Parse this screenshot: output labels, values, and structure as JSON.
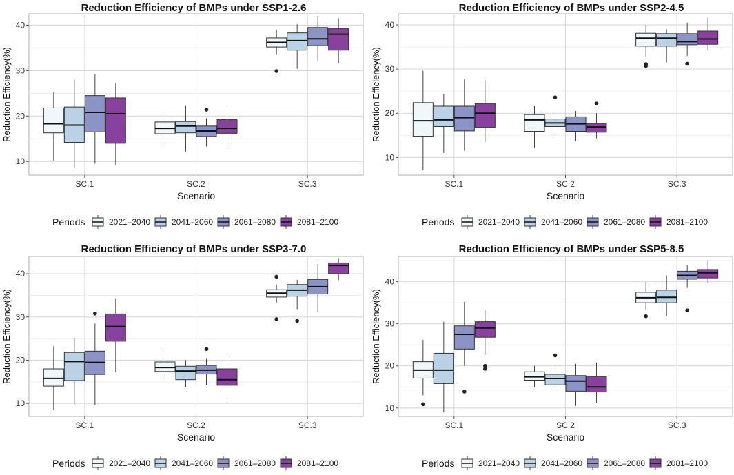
{
  "legend": {
    "title": "Periods",
    "items": [
      {
        "label": "2021–2040",
        "color": "#eef7f9"
      },
      {
        "label": "2041–2060",
        "color": "#b9d2e6"
      },
      {
        "label": "2061–2080",
        "color": "#8c93c6"
      },
      {
        "label": "2081–2100",
        "color": "#88419d"
      }
    ]
  },
  "chart_data": [
    {
      "type": "boxplot",
      "title": "Reduction Efficiency of BMPs under SSP1-2.6",
      "xlabel": "Scenario",
      "ylabel": "Reduction Efficiency(%)",
      "categories": [
        "SC.1",
        "SC.2",
        "SC.3"
      ],
      "ylim": [
        7,
        42.5
      ],
      "yticks": [
        10,
        20,
        30,
        40
      ],
      "series": [
        {
          "name": "2021–2040",
          "boxes": [
            {
              "min": 10.2,
              "q1": 16.3,
              "median": 18.3,
              "q3": 21.8,
              "max": 25.2,
              "outliers": []
            },
            {
              "min": 13.8,
              "q1": 16.1,
              "median": 17.3,
              "q3": 18.7,
              "max": 21.0,
              "outliers": []
            },
            {
              "min": 33.5,
              "q1": 35.2,
              "median": 36.2,
              "q3": 37.2,
              "max": 39.0,
              "outliers": [
                29.9
              ]
            }
          ]
        },
        {
          "name": "2041–2060",
          "boxes": [
            {
              "min": 8.7,
              "q1": 14.2,
              "median": 18.0,
              "q3": 22.0,
              "max": 28.0,
              "outliers": []
            },
            {
              "min": 12.2,
              "q1": 16.3,
              "median": 17.8,
              "q3": 18.8,
              "max": 22.2,
              "outliers": []
            },
            {
              "min": 30.4,
              "q1": 34.5,
              "median": 36.6,
              "q3": 38.3,
              "max": 40.2,
              "outliers": []
            }
          ]
        },
        {
          "name": "2061–2080",
          "boxes": [
            {
              "min": 9.5,
              "q1": 16.5,
              "median": 20.8,
              "q3": 24.5,
              "max": 29.2,
              "outliers": []
            },
            {
              "min": 13.3,
              "q1": 15.5,
              "median": 16.7,
              "q3": 17.8,
              "max": 19.5,
              "outliers": [
                21.4
              ]
            },
            {
              "min": 32.2,
              "q1": 35.5,
              "median": 37.0,
              "q3": 39.5,
              "max": 42.0,
              "outliers": []
            }
          ]
        },
        {
          "name": "2081–2100",
          "boxes": [
            {
              "min": 9.2,
              "q1": 14.0,
              "median": 20.5,
              "q3": 24.0,
              "max": 27.3,
              "outliers": []
            },
            {
              "min": 13.5,
              "q1": 16.2,
              "median": 17.3,
              "q3": 19.2,
              "max": 21.8,
              "outliers": []
            },
            {
              "min": 31.6,
              "q1": 34.5,
              "median": 38.0,
              "q3": 39.3,
              "max": 41.5,
              "outliers": []
            }
          ]
        }
      ]
    },
    {
      "type": "boxplot",
      "title": "Reduction Efficiency of BMPs under SSP2-4.5",
      "xlabel": "Scenario",
      "ylabel": "Reduction Efficiency(%)",
      "categories": [
        "SC.1",
        "SC.2",
        "SC.3"
      ],
      "ylim": [
        6,
        42.5
      ],
      "yticks": [
        10,
        20,
        30,
        40
      ],
      "series": [
        {
          "name": "2021–2040",
          "boxes": [
            {
              "min": 7.1,
              "q1": 14.8,
              "median": 18.3,
              "q3": 22.4,
              "max": 29.6,
              "outliers": []
            },
            {
              "min": 12.2,
              "q1": 15.9,
              "median": 18.5,
              "q3": 19.7,
              "max": 21.6,
              "outliers": []
            },
            {
              "min": 32.8,
              "q1": 35.2,
              "median": 37.0,
              "q3": 38.1,
              "max": 40.0,
              "outliers": [
                30.7,
                31.1
              ]
            }
          ]
        },
        {
          "name": "2041–2060",
          "boxes": [
            {
              "min": 11.0,
              "q1": 17.0,
              "median": 18.5,
              "q3": 21.6,
              "max": 24.4,
              "outliers": []
            },
            {
              "min": 15.0,
              "q1": 17.0,
              "median": 17.8,
              "q3": 18.7,
              "max": 19.7,
              "outliers": [
                23.6
              ]
            },
            {
              "min": 31.5,
              "q1": 35.2,
              "median": 37.0,
              "q3": 38.0,
              "max": 39.0,
              "outliers": []
            }
          ]
        },
        {
          "name": "2061–2080",
          "boxes": [
            {
              "min": 11.5,
              "q1": 16.0,
              "median": 19.0,
              "q3": 21.6,
              "max": 27.7,
              "outliers": []
            },
            {
              "min": 13.7,
              "q1": 15.9,
              "median": 17.6,
              "q3": 19.2,
              "max": 20.5,
              "outliers": []
            },
            {
              "min": 33.0,
              "q1": 35.5,
              "median": 36.2,
              "q3": 38.0,
              "max": 40.5,
              "outliers": [
                31.2
              ]
            }
          ]
        },
        {
          "name": "2081–2100",
          "boxes": [
            {
              "min": 13.5,
              "q1": 16.8,
              "median": 20.0,
              "q3": 22.2,
              "max": 27.5,
              "outliers": []
            },
            {
              "min": 14.3,
              "q1": 15.7,
              "median": 16.9,
              "q3": 17.7,
              "max": 20.0,
              "outliers": [
                22.2
              ]
            },
            {
              "min": 34.3,
              "q1": 35.6,
              "median": 36.8,
              "q3": 38.6,
              "max": 41.6,
              "outliers": []
            }
          ]
        }
      ]
    },
    {
      "type": "boxplot",
      "title": "Reduction Efficiency of BMPs under SSP3-7.0",
      "xlabel": "Scenario",
      "ylabel": "Reduction Efficiency(%)",
      "categories": [
        "SC.1",
        "SC.2",
        "SC.3"
      ],
      "ylim": [
        7,
        44
      ],
      "yticks": [
        10,
        20,
        30,
        40
      ],
      "series": [
        {
          "name": "2021–2040",
          "boxes": [
            {
              "min": 8.5,
              "q1": 14.0,
              "median": 15.8,
              "q3": 18.0,
              "max": 23.2,
              "outliers": []
            },
            {
              "min": 16.4,
              "q1": 17.4,
              "median": 18.3,
              "q3": 19.6,
              "max": 22.0,
              "outliers": []
            },
            {
              "min": 33.3,
              "q1": 34.6,
              "median": 35.5,
              "q3": 36.3,
              "max": 37.5,
              "outliers": [
                39.3,
                29.5
              ]
            }
          ]
        },
        {
          "name": "2041–2060",
          "boxes": [
            {
              "min": 9.8,
              "q1": 15.3,
              "median": 19.7,
              "q3": 21.8,
              "max": 25.0,
              "outliers": []
            },
            {
              "min": 13.8,
              "q1": 15.5,
              "median": 17.5,
              "q3": 18.6,
              "max": 20.0,
              "outliers": []
            },
            {
              "min": 31.8,
              "q1": 34.8,
              "median": 36.2,
              "q3": 37.5,
              "max": 38.6,
              "outliers": [
                29.1
              ]
            }
          ]
        },
        {
          "name": "2061–2080",
          "boxes": [
            {
              "min": 9.7,
              "q1": 16.7,
              "median": 19.5,
              "q3": 22.1,
              "max": 28.5,
              "outliers": [
                30.8
              ]
            },
            {
              "min": 14.2,
              "q1": 16.8,
              "median": 17.7,
              "q3": 18.8,
              "max": 20.3,
              "outliers": [
                22.6
              ]
            },
            {
              "min": 31.1,
              "q1": 35.3,
              "median": 37.0,
              "q3": 38.7,
              "max": 42.2,
              "outliers": []
            }
          ]
        },
        {
          "name": "2081–2100",
          "boxes": [
            {
              "min": 17.2,
              "q1": 24.4,
              "median": 27.8,
              "q3": 30.7,
              "max": 34.3,
              "outliers": []
            },
            {
              "min": 10.5,
              "q1": 14.2,
              "median": 15.5,
              "q3": 18.0,
              "max": 21.6,
              "outliers": []
            },
            {
              "min": 38.5,
              "q1": 40.0,
              "median": 41.9,
              "q3": 42.5,
              "max": 43.6,
              "outliers": []
            }
          ]
        }
      ]
    },
    {
      "type": "boxplot",
      "title": "Reduction Efficiency of BMPs under SSP5-8.5",
      "xlabel": "Scenario",
      "ylabel": "Reduction Efficiency(%)",
      "categories": [
        "SC.1",
        "SC.2",
        "SC.3"
      ],
      "ylim": [
        8,
        46
      ],
      "yticks": [
        10,
        20,
        30,
        40
      ],
      "series": [
        {
          "name": "2021–2040",
          "boxes": [
            {
              "min": 13.0,
              "q1": 17.1,
              "median": 19.0,
              "q3": 21.0,
              "max": 26.2,
              "outliers": [
                10.9
              ]
            },
            {
              "min": 15.0,
              "q1": 16.6,
              "median": 17.4,
              "q3": 18.6,
              "max": 20.0,
              "outliers": []
            },
            {
              "min": 33.3,
              "q1": 35.0,
              "median": 36.2,
              "q3": 37.5,
              "max": 40.0,
              "outliers": [
                31.8
              ]
            }
          ]
        },
        {
          "name": "2041–2060",
          "boxes": [
            {
              "min": 9.0,
              "q1": 15.8,
              "median": 19.0,
              "q3": 23.0,
              "max": 30.5,
              "outliers": []
            },
            {
              "min": 14.4,
              "q1": 15.5,
              "median": 17.0,
              "q3": 18.0,
              "max": 19.5,
              "outliers": [
                22.5
              ]
            },
            {
              "min": 31.8,
              "q1": 35.0,
              "median": 36.3,
              "q3": 38.0,
              "max": 41.5,
              "outliers": []
            }
          ]
        },
        {
          "name": "2061–2080",
          "boxes": [
            {
              "min": 20.0,
              "q1": 24.0,
              "median": 27.5,
              "q3": 29.5,
              "max": 35.2,
              "outliers": [
                13.9
              ]
            },
            {
              "min": 10.5,
              "q1": 14.0,
              "median": 16.4,
              "q3": 17.7,
              "max": 20.5,
              "outliers": []
            },
            {
              "min": 38.5,
              "q1": 40.6,
              "median": 41.5,
              "q3": 42.5,
              "max": 44.0,
              "outliers": [
                33.2
              ]
            }
          ]
        },
        {
          "name": "2081–2100",
          "boxes": [
            {
              "min": 22.6,
              "q1": 26.8,
              "median": 29.0,
              "q3": 30.5,
              "max": 33.2,
              "outliers": [
                20.0,
                19.3
              ]
            },
            {
              "min": 11.3,
              "q1": 13.8,
              "median": 15.0,
              "q3": 17.5,
              "max": 20.8,
              "outliers": []
            },
            {
              "min": 39.6,
              "q1": 40.9,
              "median": 42.1,
              "q3": 42.9,
              "max": 45.1,
              "outliers": []
            }
          ]
        }
      ]
    }
  ]
}
